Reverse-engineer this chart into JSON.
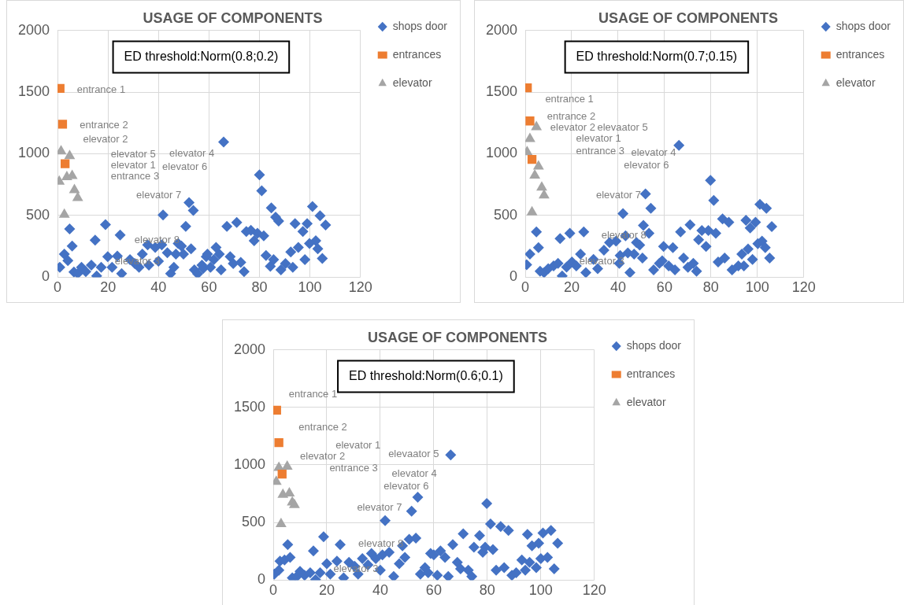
{
  "chart_data": [
    {
      "type": "scatter",
      "title": "USAGE OF COMPONENTS",
      "xlim": [
        0,
        120
      ],
      "xticks": [
        0,
        20,
        40,
        60,
        80,
        100,
        120
      ],
      "ylim": [
        0,
        2000
      ],
      "yticks": [
        0,
        500,
        1000,
        1500,
        2000
      ],
      "grid": true,
      "legend": "right",
      "series": [
        {
          "name": "shops door",
          "color": "#4472c4",
          "marker": "diamond",
          "x": [
            0.9,
            2.7,
            4.1,
            4.8,
            5.8,
            6.5,
            8.0,
            9.5,
            11.2,
            13.4,
            14.9,
            15.5,
            17.3,
            19.0,
            19.9,
            21.6,
            23.7,
            24.8,
            25.4,
            28.7,
            30.6,
            32.3,
            33.6,
            35.7,
            36.2,
            38.7,
            40.0,
            41.3,
            41.8,
            43.5,
            44.8,
            46.1,
            46.9,
            47.8,
            49.1,
            49.9,
            50.8,
            52.1,
            52.9,
            53.8,
            54.2,
            55.5,
            57.2,
            57.7,
            58.9,
            59.4,
            60.6,
            61.9,
            62.8,
            64.1,
            64.8,
            65.8,
            67.1,
            68.4,
            69.6,
            71.0,
            72.6,
            73.9,
            74.8,
            76.6,
            77.9,
            79.2,
            80.0,
            80.9,
            81.7,
            82.6,
            84.3,
            84.7,
            85.6,
            86.4,
            87.6,
            88.5,
            90.3,
            92.4,
            93.2,
            94.1,
            95.4,
            97.2,
            98.0,
            98.9,
            99.8,
            101.0,
            102.3,
            103.1,
            104.0,
            104.9,
            106.2
          ],
          "values": [
            81,
            188,
            135,
            391,
            252,
            43,
            30,
            81,
            45,
            98,
            301,
            10,
            81,
            427,
            167,
            81,
            171,
            342,
            30,
            143,
            111,
            81,
            188,
            263,
            98,
            241,
            130,
            263,
            504,
            199,
            30,
            81,
            188,
            273,
            252,
            188,
            412,
            605,
            231,
            541,
            60,
            28,
            98,
            71,
            167,
            188,
            81,
            143,
            241,
            188,
            60,
            1096,
            412,
            167,
            111,
            444,
            120,
            45,
            370,
            380,
            295,
            357,
            829,
            701,
            335,
            177,
            88,
            562,
            143,
            487,
            455,
            60,
            111,
            205,
            81,
            434,
            241,
            370,
            143,
            434,
            273,
            573,
            295,
            231,
            498,
            152,
            423
          ]
        },
        {
          "name": "entrances",
          "color": "#ed7d31",
          "marker": "square",
          "x": [
            1,
            2,
            3
          ],
          "values": [
            1530,
            1240,
            920
          ]
        },
        {
          "name": "elevator",
          "color": "#a5a5a5",
          "marker": "triangle",
          "x": [
            1.4,
            4.8,
            0.7,
            3.7,
            5.8,
            6.7,
            8,
            2.7
          ],
          "values": [
            1021,
            983,
            776,
            812,
            822,
            707,
            643,
            508
          ]
        }
      ],
      "annotations": [
        "ED threshold:Norm(0.8;0.2)",
        "entrance 1",
        "entrance 2",
        "elevator 2",
        "elevator 5",
        "elevator 1",
        "entrance 3",
        "elevator 4",
        "elevator 6",
        "elevator 7",
        "elevator 8",
        "elevator 3"
      ]
    },
    {
      "type": "scatter",
      "title": "USAGE OF COMPONENTS",
      "xlim": [
        0,
        120
      ],
      "xticks": [
        0,
        20,
        40,
        60,
        80,
        100,
        120
      ],
      "ylim": [
        0,
        2000
      ],
      "yticks": [
        0,
        500,
        1000,
        1500,
        2000
      ],
      "grid": true,
      "legend": "right",
      "series": [
        {
          "name": "shops door",
          "color": "#4472c4",
          "marker": "diamond",
          "x": [
            0.6,
            2.0,
            4.8,
            5.7,
            6.4,
            8.1,
            9.9,
            12.2,
            14.1,
            15.0,
            15.9,
            17.8,
            19.2,
            20.1,
            22.0,
            23.8,
            25.2,
            26.1,
            29.4,
            31.2,
            33.9,
            36.3,
            39.1,
            40.5,
            40.9,
            42.1,
            43.2,
            44.2,
            45.1,
            46.9,
            47.9,
            49.3,
            50.5,
            50.9,
            51.8,
            53.3,
            54.1,
            55.3,
            57.8,
            59.0,
            59.6,
            61.8,
            63.6,
            64.5,
            66.2,
            66.9,
            68.2,
            70.1,
            71.0,
            72.4,
            73.8,
            74.7,
            76.1,
            77.9,
            78.9,
            79.8,
            81.2,
            82.1,
            83.1,
            85.0,
            85.9,
            87.7,
            89.1,
            91.8,
            93.3,
            94.2,
            95.1,
            96.0,
            96.9,
            97.9,
            99.2,
            100.2,
            101.1,
            102.0,
            103.4,
            103.9,
            105.3,
            106.2
          ],
          "values": [
            102,
            187,
            367,
            240,
            49,
            38,
            70,
            91,
            112,
            314,
            10,
            83,
            357,
            123,
            91,
            187,
            367,
            38,
            144,
            70,
            219,
            282,
            293,
            112,
            176,
            516,
            335,
            197,
            38,
            187,
            282,
            261,
            155,
            420,
            675,
            357,
            558,
            60,
            112,
            134,
            250,
            91,
            240,
            60,
            1068,
            367,
            155,
            81,
            425,
            112,
            49,
            303,
            378,
            250,
            378,
            785,
            622,
            357,
            123,
            472,
            155,
            446,
            60,
            91,
            187,
            91,
            461,
            229,
            399,
            144,
            446,
            272,
            590,
            293,
            240,
            558,
            155,
            410
          ]
        },
        {
          "name": "entrances",
          "color": "#ed7d31",
          "marker": "square",
          "x": [
            0.9,
            2.0,
            2.9
          ],
          "values": [
            1535,
            1266,
            955
          ]
        },
        {
          "name": "elevator",
          "color": "#a5a5a5",
          "marker": "triangle",
          "x": [
            4.8,
            2.0,
            0.8,
            5.7,
            4.1,
            7.1,
            8.1,
            2.9
          ],
          "values": [
            1217,
            1121,
            1015,
            898,
            824,
            728,
            664,
            527
          ]
        }
      ],
      "annotations": [
        "ED threshold:Norm(0.7;0.15)",
        "entrance 1",
        "entrance 2",
        "elevator 2",
        "elevaator 5",
        "elevator 1",
        "entrance 3",
        "elevator 4",
        "elevator 6",
        "elevator 7",
        "elevator 8",
        "elevator 3"
      ]
    },
    {
      "type": "scatter",
      "title": "USAGE OF COMPONENTS",
      "xlim": [
        0,
        120
      ],
      "xticks": [
        0,
        20,
        40,
        60,
        80,
        100,
        120
      ],
      "ylim": [
        0,
        2000
      ],
      "yticks": [
        0,
        500,
        1000,
        1500,
        2000
      ],
      "grid": true,
      "legend": "right",
      "series": [
        {
          "name": "shops door",
          "color": "#4472c4",
          "marker": "diamond",
          "x": [
            0.4,
            2.1,
            2.5,
            4.2,
            5.4,
            6.3,
            7.1,
            8.8,
            10.0,
            11.7,
            13.8,
            15.0,
            15.8,
            17.5,
            18.8,
            20.0,
            21.3,
            23.8,
            25.0,
            26.3,
            28.3,
            30.4,
            31.7,
            33.3,
            35.4,
            36.7,
            38.3,
            40.0,
            40.8,
            41.8,
            43.3,
            45.0,
            47.1,
            48.3,
            49.2,
            50.8,
            51.7,
            53.3,
            54.0,
            55.0,
            56.7,
            57.9,
            58.8,
            60.0,
            61.3,
            62.5,
            64.2,
            65.4,
            66.3,
            67.1,
            68.8,
            70.0,
            71.0,
            72.9,
            74.2,
            75.0,
            77.1,
            78.3,
            79.2,
            79.8,
            81.2,
            82.1,
            83.3,
            85.0,
            86.3,
            87.9,
            89.2,
            90.8,
            92.9,
            94.2,
            95.0,
            95.8,
            96.7,
            98.3,
            99.2,
            100.0,
            100.8,
            102.5,
            103.8,
            105.0,
            106.3
          ],
          "values": [
            53,
            87,
            165,
            176,
            309,
            198,
            20,
            31,
            76,
            42,
            65,
            254,
            5,
            65,
            376,
            143,
            53,
            165,
            309,
            20,
            154,
            120,
            53,
            187,
            132,
            231,
            187,
            87,
            220,
            516,
            242,
            31,
            143,
            298,
            198,
            354,
            598,
            365,
            720,
            53,
            109,
            65,
            231,
            220,
            42,
            254,
            198,
            31,
            1087,
            309,
            154,
            98,
            402,
            87,
            31,
            287,
            387,
            242,
            287,
            665,
            487,
            265,
            87,
            465,
            109,
            431,
            42,
            65,
            176,
            87,
            398,
            154,
            298,
            109,
            320,
            187,
            409,
            198,
            431,
            98,
            320
          ]
        },
        {
          "name": "entrances",
          "color": "#ed7d31",
          "marker": "square",
          "x": [
            1.25,
            2.1,
            3.3
          ],
          "values": [
            1476,
            1194,
            920
          ]
        },
        {
          "name": "elevator",
          "color": "#a5a5a5",
          "marker": "triangle",
          "x": [
            2.1,
            5.2,
            1.1,
            3.6,
            6.0,
            7.1,
            7.9,
            2.9
          ],
          "values": [
            976,
            987,
            854,
            743,
            754,
            676,
            654,
            487
          ]
        }
      ],
      "annotations": [
        "ED threshold:Norm(0.6;0.1)",
        "entrance 1",
        "entrance 2",
        "elevator 1",
        "elevaator 5",
        "elevator 2",
        "entrance 3",
        "elevator 4",
        "elevator 6",
        "elevator 7",
        "elevator 8",
        "elevator 3"
      ]
    }
  ]
}
